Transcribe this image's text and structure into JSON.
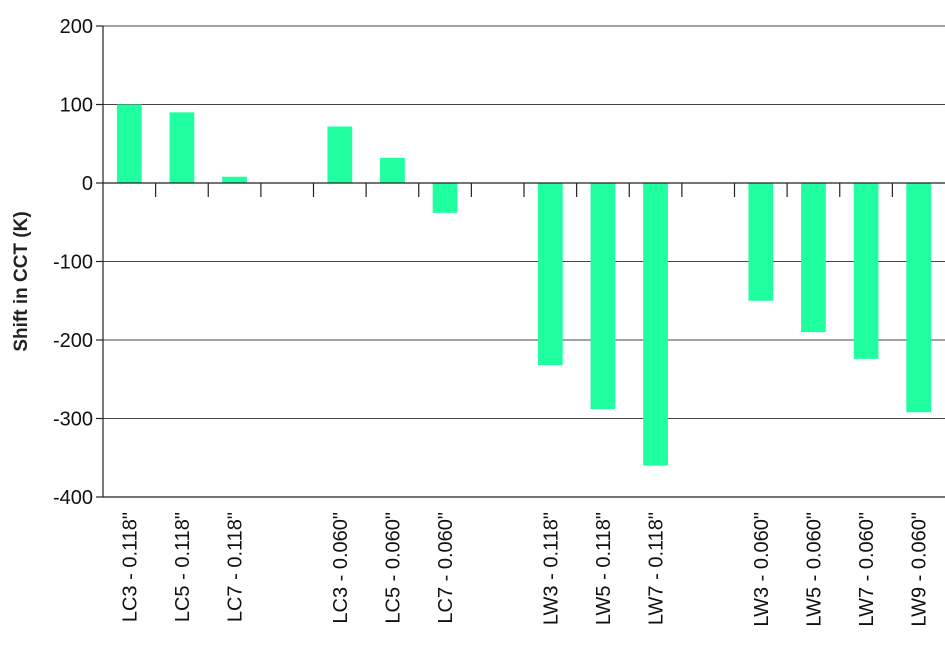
{
  "chart_data": {
    "type": "bar",
    "title": "",
    "xlabel": "",
    "ylabel": "Shift in CCT (K)",
    "ylim": [
      -400,
      200
    ],
    "yticks": [
      200,
      100,
      0,
      -100,
      -200,
      -300,
      -400
    ],
    "grid": true,
    "legend": "none",
    "bar_color": "#1fff9f",
    "categories": [
      "LC3 - 0.118\"",
      "LC5 - 0.118\"",
      "LC7 - 0.118\"",
      "",
      "LC3 - 0.060\"",
      "LC5 - 0.060\"",
      "LC7 - 0.060\"",
      "",
      "LW3 - 0.118\"",
      "LW5 - 0.118\"",
      "LW7 - 0.118\"",
      "",
      "LW3 - 0.060\"",
      "LW5 - 0.060\"",
      "LW7 - 0.060\"",
      "LW9 - 0.060\""
    ],
    "values": [
      100,
      90,
      8,
      null,
      72,
      32,
      -38,
      null,
      -232,
      -288,
      -360,
      null,
      -150,
      -190,
      -224,
      -292
    ]
  }
}
